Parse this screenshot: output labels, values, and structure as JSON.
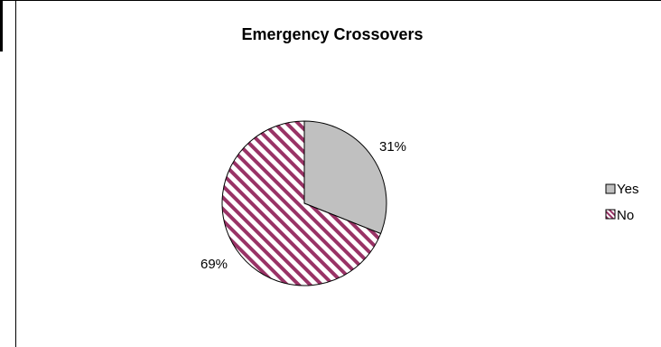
{
  "chart_data": {
    "type": "pie",
    "title": "Emergency Crossovers",
    "categories": [
      "Yes",
      "No"
    ],
    "values": [
      31,
      69
    ],
    "labels": [
      "31%",
      "69%"
    ],
    "colors": {
      "Yes": "#c0c0c0",
      "No_stripe": "#993366",
      "No_background": "#ffffff",
      "outline": "#000000"
    },
    "legend": {
      "placement": "right",
      "entries": [
        "Yes",
        "No"
      ]
    },
    "start_angle": "12 o'clock",
    "direction": "clockwise"
  }
}
